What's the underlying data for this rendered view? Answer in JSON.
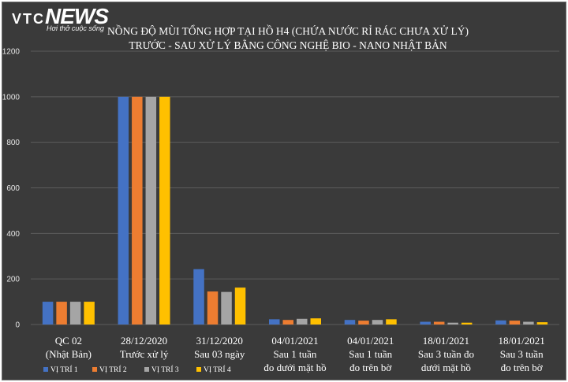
{
  "logo": {
    "vtc": "VTC",
    "brand": "NEWS",
    "tagline": "Hơi thở cuộc sống"
  },
  "chart_data": {
    "type": "bar",
    "title": "NỒNG ĐỘ MÙI TỔNG HỢP TẠI HỒ H4 (CHỨA NƯỚC RỈ RÁC CHƯA XỬ LÝ)",
    "subtitle": "TRƯỚC - SAU XỬ LÝ BẰNG CÔNG NGHỆ BIO -  NANO NHẬT BẢN",
    "ylim": [
      0,
      1200
    ],
    "yticks": [
      0,
      200,
      400,
      600,
      800,
      1000,
      1200
    ],
    "grid": true,
    "legend_position": "bottom-left",
    "categories": [
      [
        "QC 02",
        "(Nhật Bản)"
      ],
      [
        "28/12/2020",
        "Trước xử lý"
      ],
      [
        "31/12/2020",
        "Sau 03 ngày"
      ],
      [
        "04/01/2021",
        "Sau 1 tuần",
        "đo dưới mặt hồ"
      ],
      [
        "04/01/2021",
        "Sau 1 tuần",
        "đo trên bờ"
      ],
      [
        "18/01/2021",
        "Sau 3 tuần đo",
        "dưới mặt hồ"
      ],
      [
        "18/01/2021",
        "Sau 3 tuần",
        "đo trên bờ"
      ]
    ],
    "series": [
      {
        "name": "VỊ TRÍ 1",
        "color": "#4472c4",
        "values": [
          100,
          1000,
          243,
          23,
          20,
          12,
          18
        ]
      },
      {
        "name": "VỊ TRÍ 2",
        "color": "#ed7d31",
        "values": [
          100,
          1000,
          145,
          20,
          17,
          12,
          17
        ]
      },
      {
        "name": "VỊ TRÍ 3",
        "color": "#a5a5a5",
        "values": [
          100,
          1000,
          143,
          25,
          20,
          8,
          12
        ]
      },
      {
        "name": "VỊ TRÍ 4",
        "color": "#ffc000",
        "values": [
          100,
          1000,
          162,
          27,
          23,
          8,
          10
        ]
      }
    ]
  }
}
